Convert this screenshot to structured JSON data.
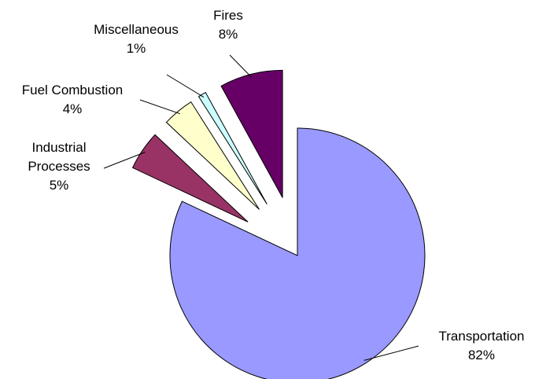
{
  "chart_data": {
    "type": "pie",
    "categories": [
      "Transportation",
      "Industrial Processes",
      "Fuel Combustion",
      "Miscellaneous",
      "Fires"
    ],
    "values": [
      82,
      5,
      4,
      1,
      8
    ],
    "value_labels": [
      "82%",
      "5%",
      "4%",
      "1%",
      "8%"
    ],
    "colors": [
      "#9999ff",
      "#993366",
      "#ffffcc",
      "#ccffff",
      "#660066"
    ]
  }
}
